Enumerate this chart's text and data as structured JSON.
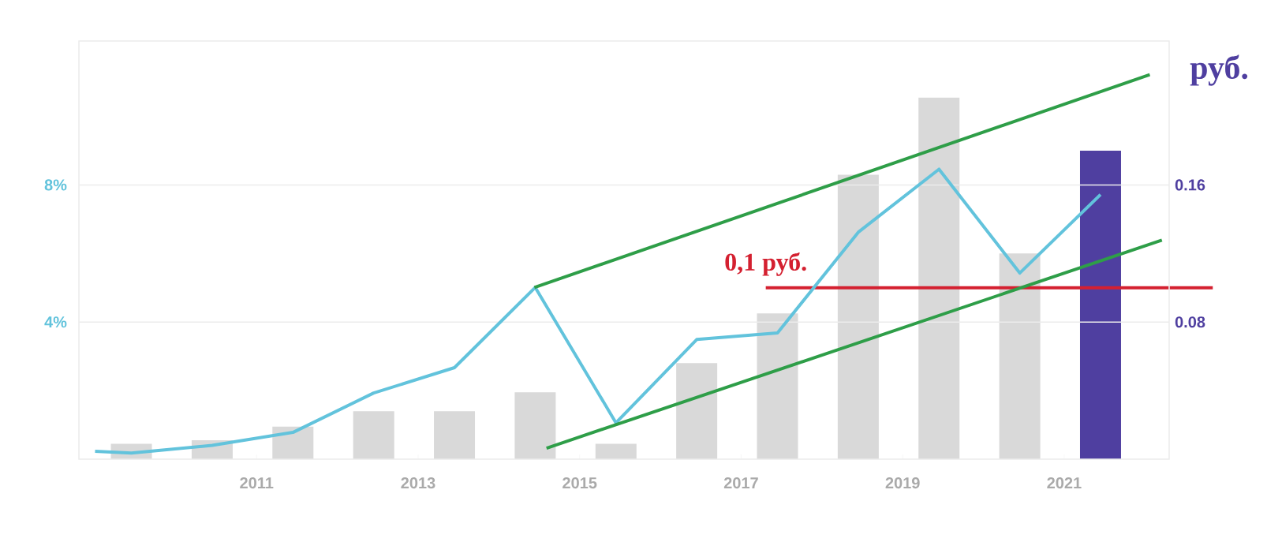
{
  "chart_data": {
    "type": "bar",
    "xlim": [
      2008.8,
      2022.3
    ],
    "xticks": [
      2011,
      2013,
      2015,
      2017,
      2019,
      2021
    ],
    "ylim": [
      0,
      12.2
    ],
    "yticks": [
      {
        "value": 4,
        "label": "4%"
      },
      {
        "value": 8,
        "label": "8%"
      }
    ],
    "y2lim": [
      0,
      0.244
    ],
    "y2ticks": [
      0.08,
      0.16
    ],
    "y2label": "руб.",
    "grid": "y",
    "series": [
      {
        "axis": "y2",
        "x": [
          2009.45,
          2010.45,
          2011.45,
          2012.45,
          2013.45,
          2014.45,
          2015.45,
          2016.45,
          2017.45,
          2018.45,
          2019.45,
          2020.45,
          2021.45
        ],
        "values": [
          0.009,
          0.011,
          0.019,
          0.028,
          0.028,
          0.039,
          0.009,
          0.056,
          0.085,
          0.166,
          0.211,
          0.12,
          0.18
        ],
        "colors": [
          "#d9d9d9",
          "#d9d9d9",
          "#d9d9d9",
          "#d9d9d9",
          "#d9d9d9",
          "#d9d9d9",
          "#d9d9d9",
          "#d9d9d9",
          "#d9d9d9",
          "#d9d9d9",
          "#d9d9d9",
          "#d9d9d9",
          "#4f3fa0"
        ]
      },
      {
        "type": "line",
        "axis": "y",
        "color": "#62c3dc",
        "x": [
          2009.0,
          2009.45,
          2010.45,
          2011.45,
          2012.45,
          2013.45,
          2014.45,
          2015.45,
          2016.45,
          2017.45,
          2018.45,
          2019.45,
          2020.45,
          2021.45
        ],
        "values": [
          0.23,
          0.18,
          0.4,
          0.78,
          1.93,
          2.67,
          5.01,
          1.06,
          3.49,
          3.68,
          6.62,
          8.46,
          5.43,
          7.72
        ]
      },
      {
        "type": "line",
        "axis": "y",
        "color": "#2e9e48",
        "x": [
          2014.44,
          2022.06
        ],
        "values": [
          5.01,
          11.22
        ]
      },
      {
        "type": "line",
        "axis": "y",
        "color": "#2e9e48",
        "x": [
          2014.59,
          2022.21
        ],
        "values": [
          0.32,
          6.39
        ]
      }
    ],
    "ref_lines": [
      {
        "axis": "y2",
        "value": 0.1,
        "label": "0,1 руб.",
        "color": "#d42030"
      }
    ]
  }
}
